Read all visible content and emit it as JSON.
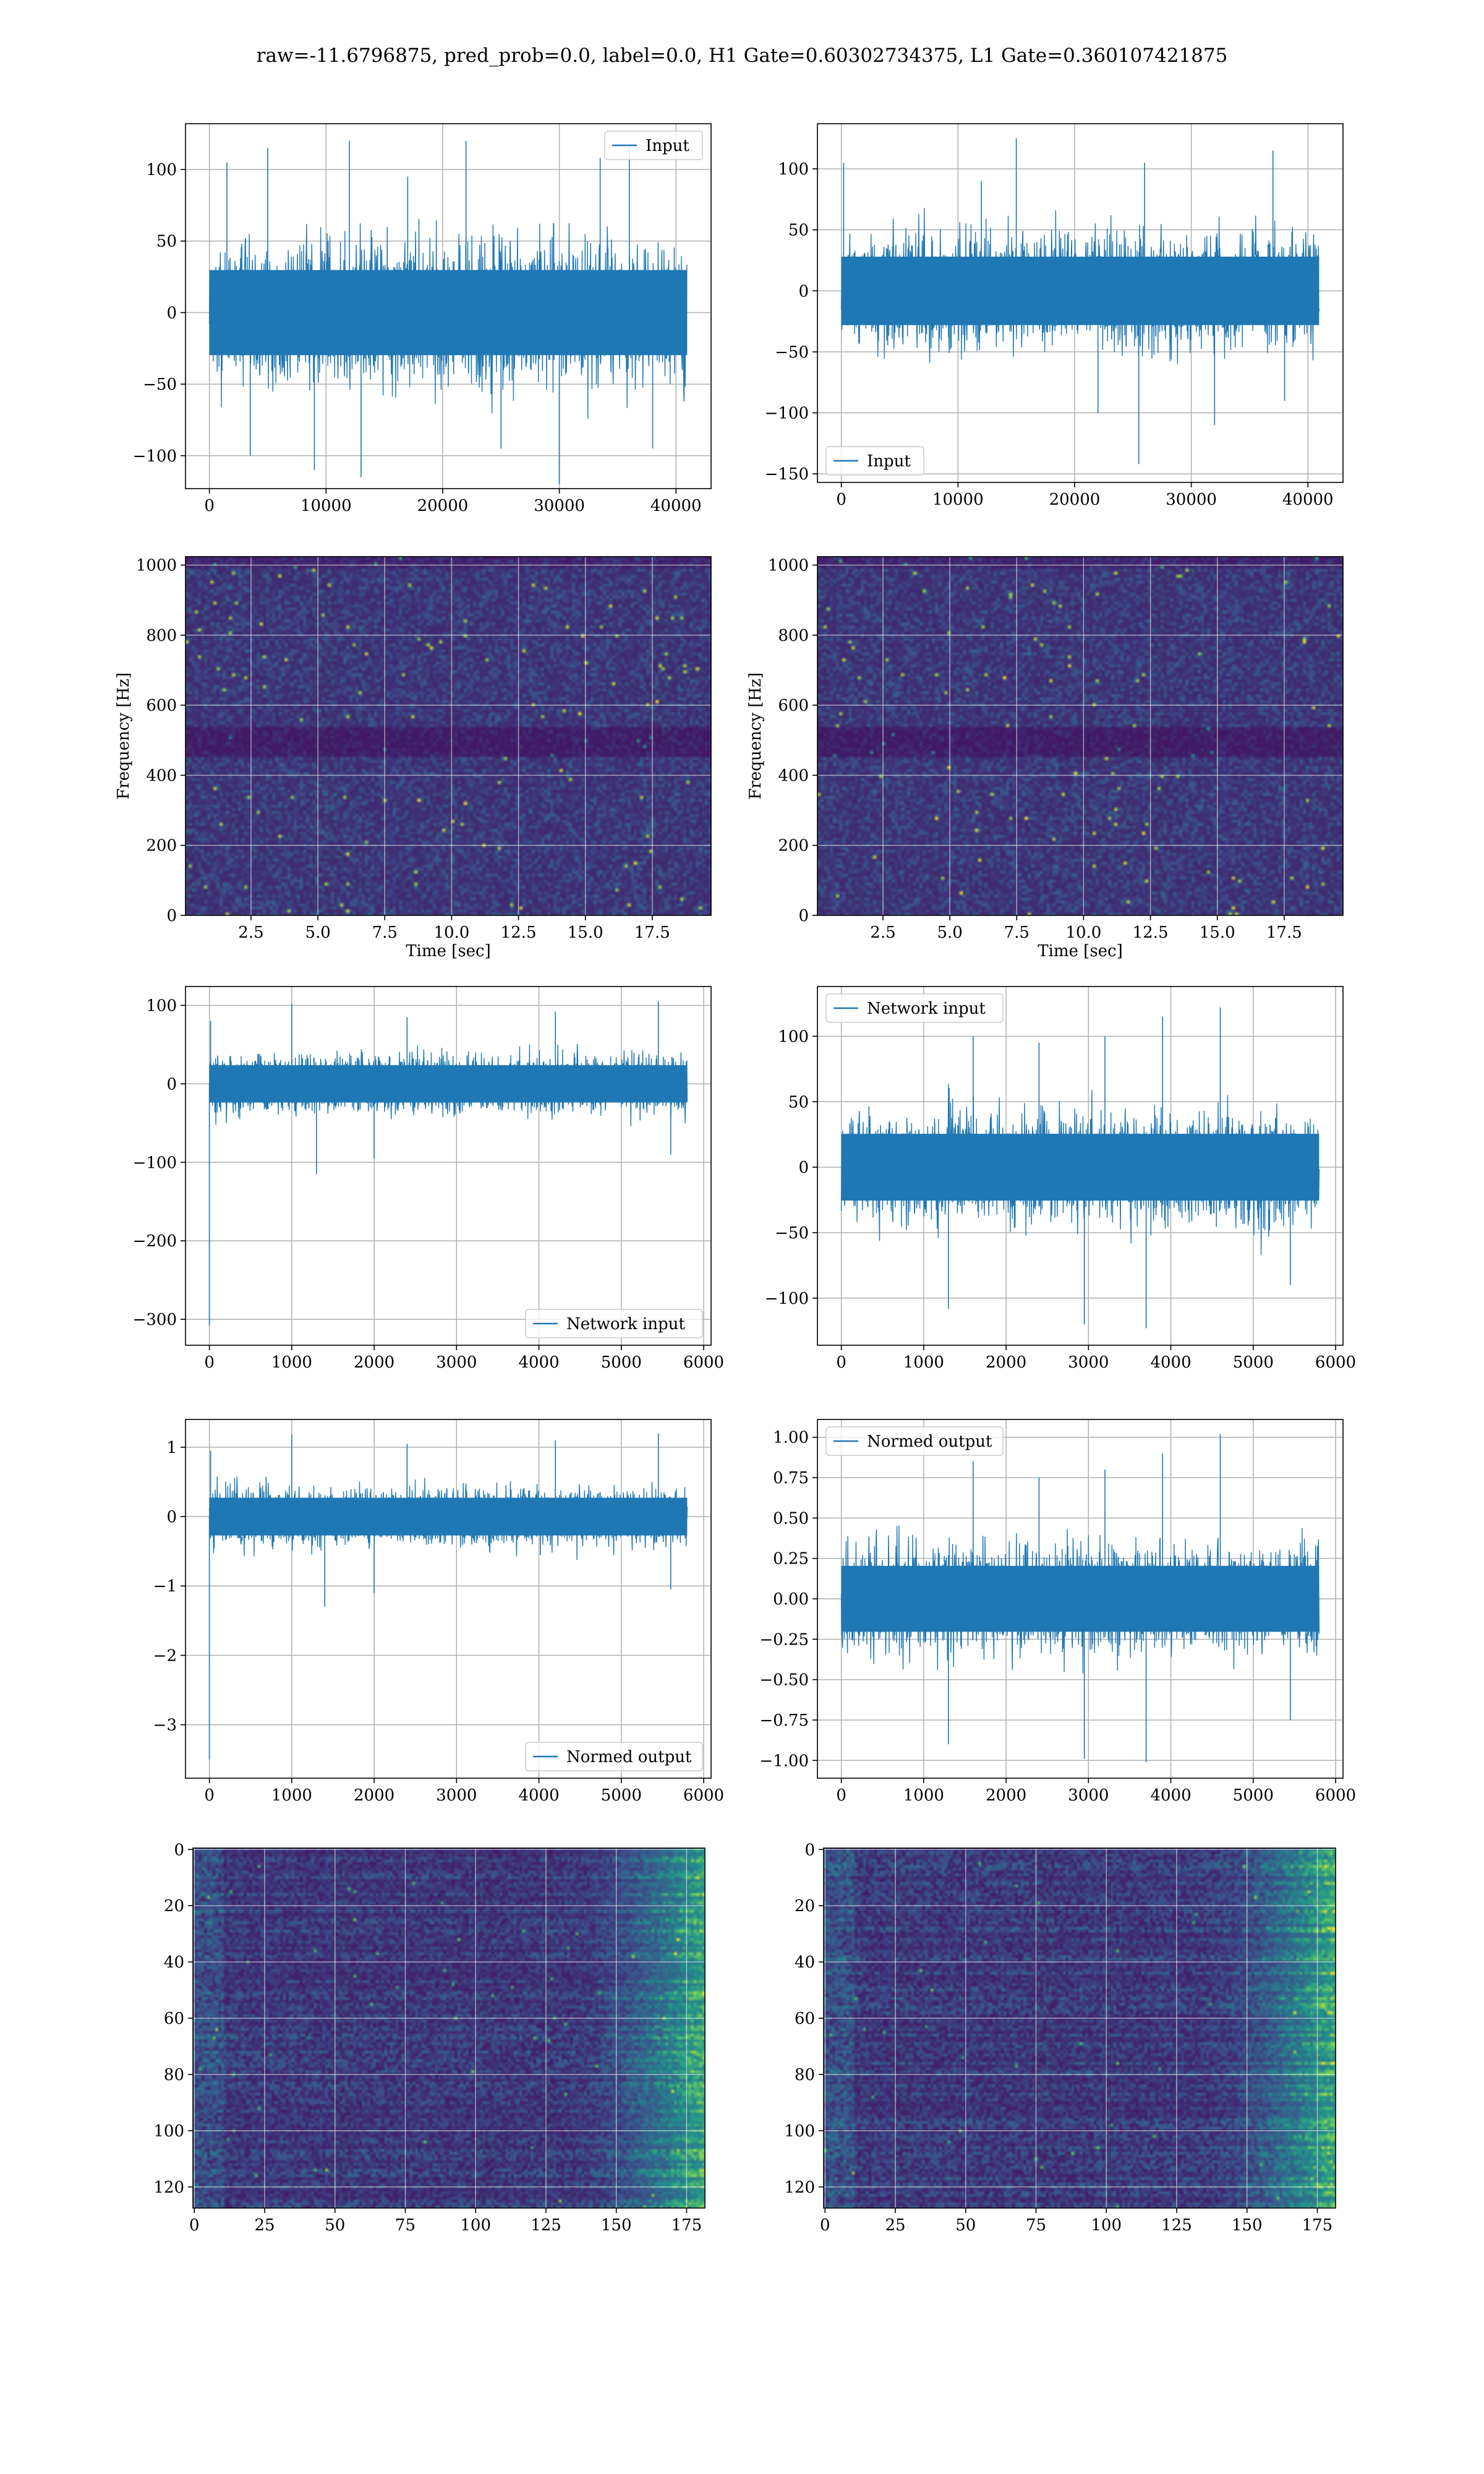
{
  "figure": {
    "title": "raw=-11.6796875, pred_prob=0.0, label=0.0, H1 Gate=0.60302734375, L1 Gate=0.360107421875"
  },
  "chart_data": [
    {
      "id": "r1c1",
      "type": "line",
      "series": [
        {
          "name": "Input",
          "color": "#1f77b4",
          "x_range": [
            0,
            40960
          ],
          "amp": 35,
          "env": 45,
          "spikes": [
            [
              1500,
              105
            ],
            [
              3500,
              -100
            ],
            [
              5000,
              115
            ],
            [
              9000,
              -110
            ],
            [
              12000,
              120
            ],
            [
              13000,
              -115
            ],
            [
              17000,
              95
            ],
            [
              22000,
              120
            ],
            [
              25000,
              -95
            ],
            [
              30000,
              -120
            ],
            [
              33500,
              108
            ],
            [
              36000,
              115
            ],
            [
              38000,
              -95
            ]
          ]
        }
      ],
      "xlim": [
        -2048,
        43008
      ],
      "ylim": [
        -123,
        132
      ],
      "xticks": [
        0,
        10000,
        20000,
        30000,
        40000
      ],
      "xtick_labels": [
        "0",
        "10000",
        "20000",
        "30000",
        "40000"
      ],
      "yticks": [
        -100,
        -50,
        0,
        50,
        100
      ],
      "ytick_labels": [
        "−100",
        "−50",
        "0",
        "50",
        "100"
      ],
      "grid": true,
      "legend": "upper right",
      "xlabel": "",
      "ylabel": ""
    },
    {
      "id": "r1c2",
      "type": "line",
      "series": [
        {
          "name": "Input",
          "color": "#1f77b4",
          "x_range": [
            0,
            40960
          ],
          "amp": 33,
          "env": 45,
          "spikes": [
            [
              200,
              105
            ],
            [
              12000,
              90
            ],
            [
              15000,
              125
            ],
            [
              22000,
              -100
            ],
            [
              25500,
              -142
            ],
            [
              26000,
              105
            ],
            [
              32000,
              -110
            ],
            [
              37000,
              115
            ],
            [
              38000,
              -90
            ]
          ]
        }
      ],
      "xlim": [
        -2048,
        43008
      ],
      "ylim": [
        -157,
        137
      ],
      "xticks": [
        0,
        10000,
        20000,
        30000,
        40000
      ],
      "xtick_labels": [
        "0",
        "10000",
        "20000",
        "30000",
        "40000"
      ],
      "yticks": [
        -150,
        -100,
        -50,
        0,
        50,
        100
      ],
      "ytick_labels": [
        "−150",
        "−100",
        "−50",
        "0",
        "50",
        "100"
      ],
      "grid": true,
      "legend": "lower left",
      "xlabel": "",
      "ylabel": ""
    },
    {
      "id": "r2c1",
      "type": "heatmap",
      "seed": 11,
      "stripes": [
        490,
        510
      ],
      "xlim": [
        0.05,
        19.7
      ],
      "ylim": [
        0,
        1024
      ],
      "xticks": [
        2.5,
        5.0,
        7.5,
        10.0,
        12.5,
        15.0,
        17.5
      ],
      "xtick_labels": [
        "2.5",
        "5.0",
        "7.5",
        "10.0",
        "12.5",
        "15.0",
        "17.5"
      ],
      "yticks": [
        0,
        200,
        400,
        600,
        800,
        1000
      ],
      "ytick_labels": [
        "0",
        "200",
        "400",
        "600",
        "800",
        "1000"
      ],
      "xlabel": "Time [sec]",
      "ylabel": "Frequency [Hz]",
      "grid": true
    },
    {
      "id": "r2c2",
      "type": "heatmap",
      "seed": 29,
      "stripes": [
        490,
        510
      ],
      "xlim": [
        0.05,
        19.7
      ],
      "ylim": [
        0,
        1024
      ],
      "xticks": [
        2.5,
        5.0,
        7.5,
        10.0,
        12.5,
        15.0,
        17.5
      ],
      "xtick_labels": [
        "2.5",
        "5.0",
        "7.5",
        "10.0",
        "12.5",
        "15.0",
        "17.5"
      ],
      "yticks": [
        0,
        200,
        400,
        600,
        800,
        1000
      ],
      "ytick_labels": [
        "0",
        "200",
        "400",
        "600",
        "800",
        "1000"
      ],
      "xlabel": "Time [sec]",
      "ylabel": "Frequency [Hz]",
      "grid": true
    },
    {
      "id": "r3c1",
      "type": "line",
      "series": [
        {
          "name": "Network input",
          "color": "#1f77b4",
          "x_range": [
            0,
            5800
          ],
          "amp": 28,
          "env": 30,
          "spikes": [
            [
              0,
              -308
            ],
            [
              15,
              80
            ],
            [
              1000,
              102
            ],
            [
              1300,
              -115
            ],
            [
              2000,
              -95
            ],
            [
              2400,
              85
            ],
            [
              4200,
              92
            ],
            [
              5450,
              105
            ],
            [
              5600,
              -90
            ]
          ]
        }
      ],
      "xlim": [
        -290,
        6090
      ],
      "ylim": [
        -333,
        124
      ],
      "xticks": [
        0,
        1000,
        2000,
        3000,
        4000,
        5000,
        6000
      ],
      "xtick_labels": [
        "0",
        "1000",
        "2000",
        "3000",
        "4000",
        "5000",
        "6000"
      ],
      "yticks": [
        -300,
        -200,
        -100,
        0,
        100
      ],
      "ytick_labels": [
        "−300",
        "−200",
        "−100",
        "0",
        "100"
      ],
      "grid": true,
      "legend": "lower right",
      "xlabel": "",
      "ylabel": ""
    },
    {
      "id": "r3c2",
      "type": "line",
      "series": [
        {
          "name": "Network input",
          "color": "#1f77b4",
          "x_range": [
            0,
            5800
          ],
          "amp": 30,
          "env": 40,
          "spikes": [
            [
              1300,
              -108
            ],
            [
              1600,
              100
            ],
            [
              2400,
              95
            ],
            [
              2950,
              -120
            ],
            [
              3200,
              100
            ],
            [
              3700,
              -123
            ],
            [
              3900,
              115
            ],
            [
              4600,
              122
            ],
            [
              5450,
              -90
            ]
          ]
        }
      ],
      "xlim": [
        -290,
        6090
      ],
      "ylim": [
        -136,
        138
      ],
      "xticks": [
        0,
        1000,
        2000,
        3000,
        4000,
        5000,
        6000
      ],
      "xtick_labels": [
        "0",
        "1000",
        "2000",
        "3000",
        "4000",
        "5000",
        "6000"
      ],
      "yticks": [
        -100,
        -50,
        0,
        50,
        100
      ],
      "ytick_labels": [
        "−100",
        "−50",
        "0",
        "50",
        "100"
      ],
      "grid": true,
      "legend": "upper left",
      "xlabel": "",
      "ylabel": ""
    },
    {
      "id": "r4c1",
      "type": "line",
      "series": [
        {
          "name": "Normed output",
          "color": "#1f77b4",
          "x_range": [
            0,
            5800
          ],
          "amp": 0.32,
          "env": 0.35,
          "spikes": [
            [
              0,
              -3.5
            ],
            [
              15,
              0.95
            ],
            [
              1000,
              1.18
            ],
            [
              1400,
              -1.3
            ],
            [
              2000,
              -1.1
            ],
            [
              2400,
              1.05
            ],
            [
              4200,
              1.1
            ],
            [
              5450,
              1.2
            ],
            [
              5600,
              -1.05
            ]
          ]
        }
      ],
      "xlim": [
        -290,
        6090
      ],
      "ylim": [
        -3.77,
        1.4
      ],
      "xticks": [
        0,
        1000,
        2000,
        3000,
        4000,
        5000,
        6000
      ],
      "xtick_labels": [
        "0",
        "1000",
        "2000",
        "3000",
        "4000",
        "5000",
        "6000"
      ],
      "yticks": [
        -3,
        -2,
        -1,
        0,
        1
      ],
      "ytick_labels": [
        "−3",
        "−2",
        "−1",
        "0",
        "1"
      ],
      "grid": true,
      "legend": "lower right",
      "xlabel": "",
      "ylabel": ""
    },
    {
      "id": "r4c2",
      "type": "line",
      "series": [
        {
          "name": "Normed output",
          "color": "#1f77b4",
          "x_range": [
            0,
            5800
          ],
          "amp": 0.24,
          "env": 0.3,
          "spikes": [
            [
              1300,
              -0.9
            ],
            [
              1600,
              0.85
            ],
            [
              2400,
              0.75
            ],
            [
              2950,
              -0.99
            ],
            [
              3200,
              0.8
            ],
            [
              3700,
              -1.01
            ],
            [
              3900,
              0.9
            ],
            [
              4600,
              1.02
            ],
            [
              5450,
              -0.75
            ]
          ]
        }
      ],
      "xlim": [
        -290,
        6090
      ],
      "ylim": [
        -1.11,
        1.11
      ],
      "xticks": [
        0,
        1000,
        2000,
        3000,
        4000,
        5000,
        6000
      ],
      "xtick_labels": [
        "0",
        "1000",
        "2000",
        "3000",
        "4000",
        "5000",
        "6000"
      ],
      "yticks": [
        -1.0,
        -0.75,
        -0.5,
        -0.25,
        0.0,
        0.25,
        0.5,
        0.75,
        1.0
      ],
      "ytick_labels": [
        "−1.00",
        "−0.75",
        "−0.50",
        "−0.25",
        "0.00",
        "0.25",
        "0.50",
        "0.75",
        "1.00"
      ],
      "grid": true,
      "legend": "upper left",
      "xlabel": "",
      "ylabel": ""
    },
    {
      "id": "r5c1",
      "type": "heatmap",
      "seed": 53,
      "rows": 128,
      "cols": 182,
      "xlim": [
        -0.5,
        181.5
      ],
      "ylim": [
        127.5,
        -0.5
      ],
      "xticks": [
        0,
        25,
        50,
        75,
        100,
        125,
        150,
        175
      ],
      "xtick_labels": [
        "0",
        "25",
        "50",
        "75",
        "100",
        "125",
        "150",
        "175"
      ],
      "yticks": [
        0,
        20,
        40,
        60,
        80,
        100,
        120
      ],
      "ytick_labels": [
        "0",
        "20",
        "40",
        "60",
        "80",
        "100",
        "120"
      ],
      "xlabel": "",
      "ylabel": "",
      "grid": true
    },
    {
      "id": "r5c2",
      "type": "heatmap",
      "seed": 71,
      "rows": 128,
      "cols": 182,
      "xlim": [
        -0.5,
        181.5
      ],
      "ylim": [
        127.5,
        -0.5
      ],
      "xticks": [
        0,
        25,
        50,
        75,
        100,
        125,
        150,
        175
      ],
      "xtick_labels": [
        "0",
        "25",
        "50",
        "75",
        "100",
        "125",
        "150",
        "175"
      ],
      "yticks": [
        0,
        20,
        40,
        60,
        80,
        100,
        120
      ],
      "ytick_labels": [
        "0",
        "20",
        "40",
        "60",
        "80",
        "100",
        "120"
      ],
      "xlabel": "",
      "ylabel": "",
      "grid": true
    }
  ]
}
